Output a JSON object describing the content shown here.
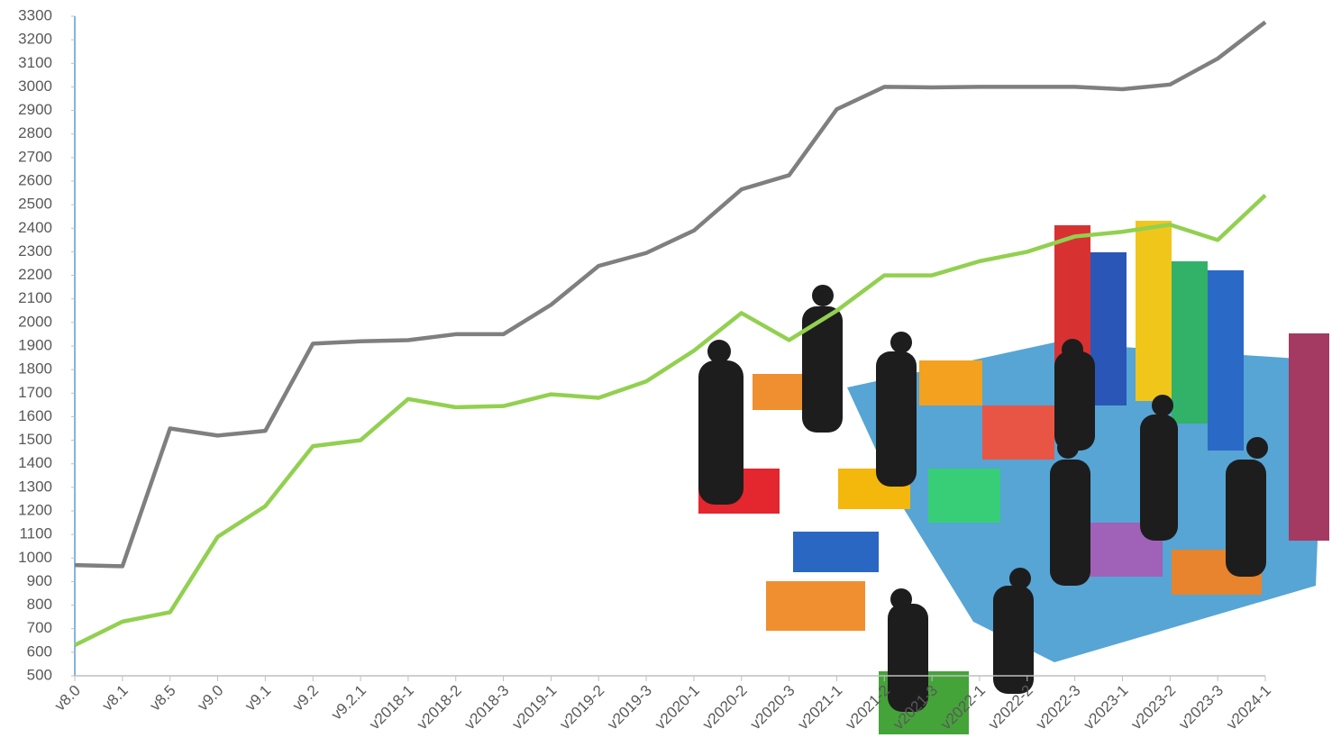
{
  "chart_data": {
    "type": "line",
    "categories": [
      "v8.0",
      "v8.1",
      "v8.5",
      "v9.0",
      "v9.1",
      "v9.2",
      "v9.2.1",
      "v2018-1",
      "v2018-2",
      "v2018-3",
      "v2019-1",
      "v2019-2",
      "v2019-3",
      "v2020-1",
      "v2020-2",
      "v2020-3",
      "v2021-1",
      "v2021-2",
      "v2021-3",
      "v2022-1",
      "v2022-2",
      "v2022-3",
      "v2023-1",
      "v2023-2",
      "v2023-3",
      "v2024-1"
    ],
    "series": [
      {
        "color": "#7f7f7f",
        "values": [
          970,
          965,
          1550,
          1520,
          1540,
          1910,
          1920,
          1925,
          1950,
          1950,
          2075,
          2240,
          2295,
          2390,
          2565,
          2625,
          2905,
          3000,
          2998,
          3000,
          3000,
          3000,
          2990,
          3010,
          3120,
          3275
        ]
      },
      {
        "color": "#92d050",
        "values": [
          630,
          730,
          770,
          1090,
          1220,
          1475,
          1500,
          1675,
          1640,
          1645,
          1695,
          1680,
          1750,
          1880,
          2040,
          1925,
          2050,
          2200,
          2200,
          2260,
          2300,
          2365,
          2385,
          2415,
          2350,
          2540
        ]
      }
    ],
    "ylim": [
      500,
      3300
    ],
    "yticks": [
      500,
      600,
      700,
      800,
      900,
      1000,
      1100,
      1200,
      1300,
      1400,
      1500,
      1600,
      1700,
      1800,
      1900,
      2000,
      2100,
      2200,
      2300,
      2400,
      2500,
      2600,
      2700,
      2800,
      2900,
      3000,
      3100,
      3200,
      3300
    ],
    "grid": false
  }
}
